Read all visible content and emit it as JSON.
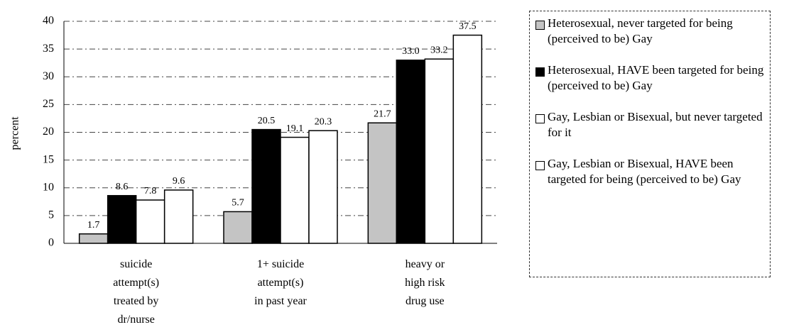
{
  "chart_data": {
    "type": "bar",
    "y_label": "percent",
    "categories": [
      [
        "suicide",
        "attempt(s)",
        "treated by",
        "dr/nurse"
      ],
      [
        "1+ suicide",
        "attempt(s)",
        "in past year"
      ],
      [
        "heavy or",
        "high risk",
        "drug use"
      ]
    ],
    "series": [
      {
        "name": "Heterosexual, never targeted for being (perceived to be) Gay",
        "color": "#c4c4c4",
        "values": [
          1.7,
          5.7,
          21.7
        ]
      },
      {
        "name": "Heterosexual, HAVE been targeted for being (perceived to be) Gay",
        "color": "#000000",
        "values": [
          8.6,
          20.5,
          33.0
        ],
        "value_labels": [
          "8.6",
          "20.5",
          "33.0"
        ]
      },
      {
        "name": "Gay, Lesbian or Bisexual, but never targeted for it",
        "color": "#ffffff",
        "values": [
          7.8,
          19.1,
          33.2
        ]
      },
      {
        "name": "Gay, Lesbian or Bisexual, HAVE been targeted for being (perceived to be) Gay",
        "color": "#ffffff",
        "values": [
          9.6,
          20.3,
          37.5
        ]
      }
    ],
    "ylim": [
      0,
      40
    ],
    "yticks": [
      0,
      5,
      10,
      15,
      20,
      25,
      30,
      35,
      40
    ],
    "grid": true,
    "legend": "right"
  }
}
